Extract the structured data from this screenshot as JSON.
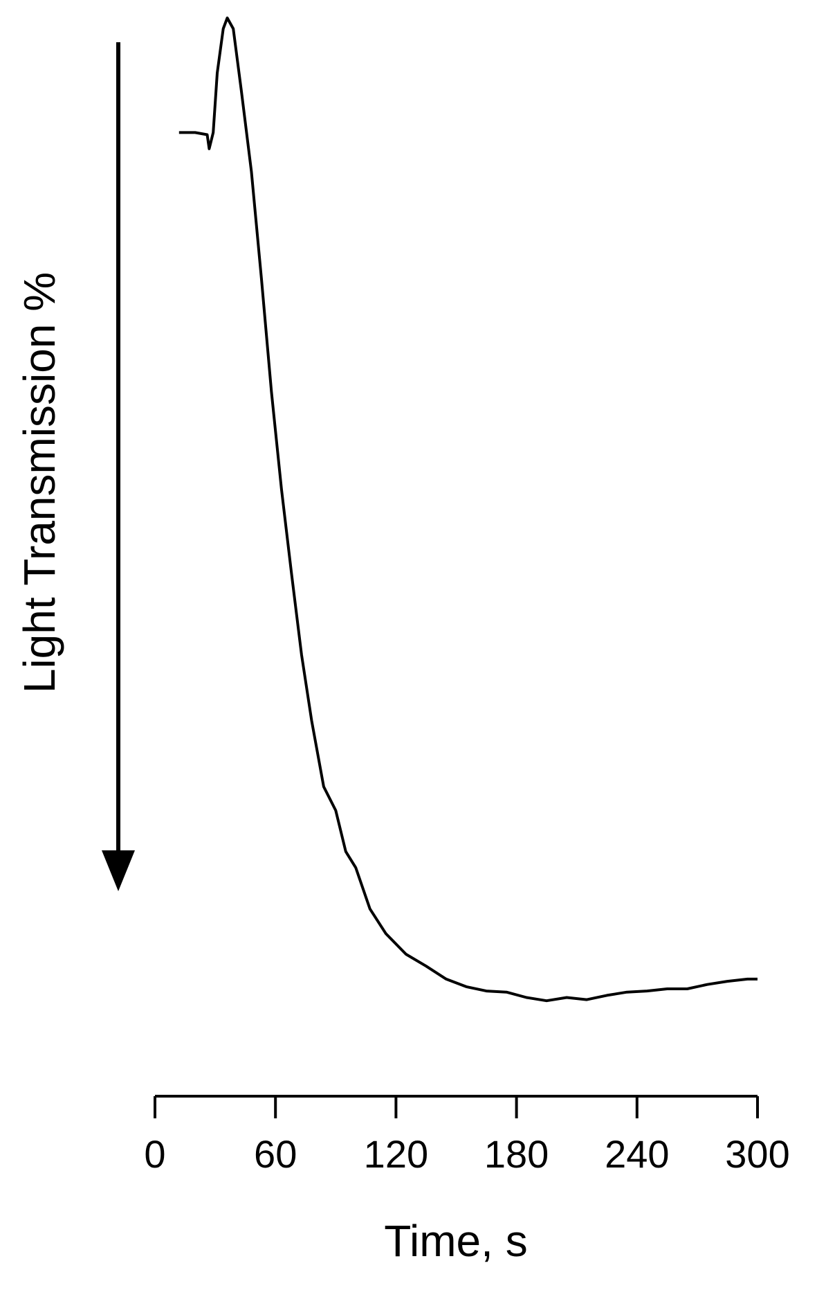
{
  "chart_data": {
    "type": "line",
    "y_label": "Light Transmission %",
    "x_label": "Time, s",
    "x": [
      12,
      20,
      26,
      27,
      29,
      31,
      34,
      36,
      39,
      43,
      48,
      53,
      58,
      63,
      68,
      73,
      78,
      84,
      90,
      95,
      100,
      107,
      115,
      125,
      135,
      145,
      155,
      165,
      175,
      185,
      195,
      205,
      215,
      225,
      235,
      245,
      255,
      265,
      275,
      285,
      295,
      300
    ],
    "series": [
      {
        "color": "#000000",
        "values": [
          0,
          0,
          0.2,
          1.5,
          0,
          -5.5,
          -9.6,
          -10.6,
          -9.6,
          -3.9,
          3.6,
          13.5,
          24,
          33,
          40.8,
          48.3,
          54.4,
          60.5,
          62.7,
          66.5,
          68,
          71.8,
          74.1,
          76,
          77.1,
          78.3,
          79,
          79.4,
          79.5,
          80,
          80.3,
          80,
          80.2,
          79.8,
          79.5,
          79.4,
          79.2,
          79.2,
          78.8,
          78.5,
          78.3,
          78.3
        ]
      }
    ],
    "xlim": [
      0,
      300
    ],
    "xticks": [
      0,
      60,
      120,
      180,
      240,
      300
    ],
    "ylim": [
      -12,
      89
    ],
    "y_inverted": true
  }
}
